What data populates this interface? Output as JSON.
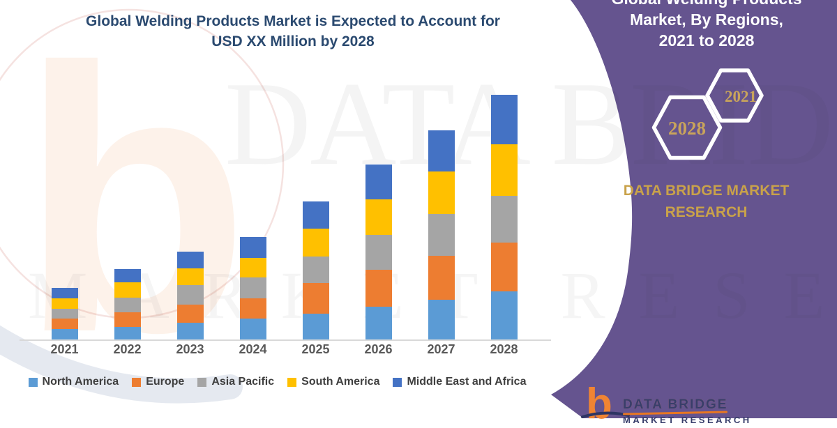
{
  "page": {
    "background": "#ffffff",
    "sidebar_color": "#65548F",
    "accent_gold": "#C9A24A",
    "title_color": "#2B4A70"
  },
  "title": {
    "line1": "Global Welding Products Market is Expected to Account for",
    "line2": "USD XX Million by 2028"
  },
  "sidebar": {
    "heading_lines": [
      "Global Welding Products",
      "Market, By Regions,",
      "2021 to 2028"
    ],
    "hexagons": [
      {
        "label": "2028"
      },
      {
        "label": "2021"
      }
    ],
    "brand_lines": [
      "DATA BRIDGE MARKET",
      "RESEARCH"
    ]
  },
  "watermark": {
    "letter": "b",
    "line1": "DATA BRIDGE",
    "line2": "MARKET RESEARCH"
  },
  "footer_logo": {
    "letter": "b",
    "brand": "DATA BRIDGE",
    "sub": "MARKET RESEARCH"
  },
  "chart_data": {
    "type": "bar",
    "stacked": true,
    "title": "Global Welding Products Market is Expected to Account for USD XX Million by 2028",
    "xlabel": "",
    "ylabel": "",
    "value_units": "relative height units (no numeric axis shown in figure)",
    "grid": false,
    "legend_position": "bottom",
    "categories": [
      "2021",
      "2022",
      "2023",
      "2024",
      "2025",
      "2026",
      "2027",
      "2028"
    ],
    "series": [
      {
        "name": "North America",
        "color": "#5B9BD5",
        "values": [
          15,
          18,
          24,
          30,
          37,
          47,
          57,
          69
        ]
      },
      {
        "name": "Europe",
        "color": "#ED7D31",
        "values": [
          15,
          21,
          26,
          29,
          44,
          53,
          63,
          70
        ]
      },
      {
        "name": "Asia Pacific",
        "color": "#A5A5A5",
        "values": [
          14,
          21,
          28,
          30,
          38,
          50,
          60,
          67
        ]
      },
      {
        "name": "South America",
        "color": "#FFC000",
        "values": [
          15,
          22,
          24,
          28,
          40,
          51,
          61,
          74
        ]
      },
      {
        "name": "Middle East and Africa",
        "color": "#4472C4",
        "values": [
          15,
          19,
          24,
          30,
          39,
          50,
          59,
          71
        ]
      }
    ]
  }
}
